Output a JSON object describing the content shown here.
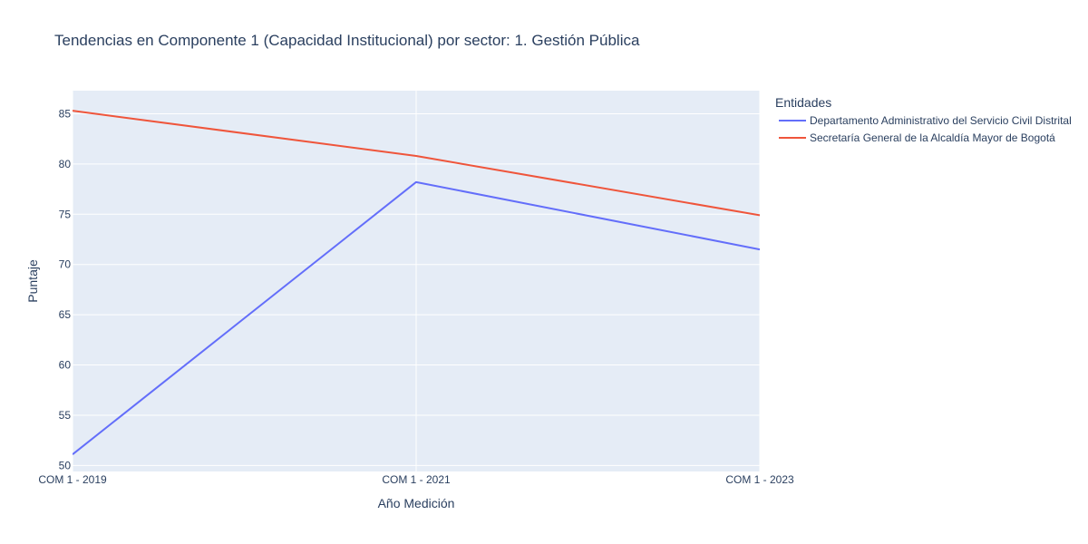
{
  "chart_data": {
    "type": "line",
    "title": "Tendencias en Componente 1 (Capacidad Institucional) por sector: 1. Gestión Pública",
    "xlabel": "Año Medición",
    "ylabel": "Puntaje",
    "categories": [
      "COM 1 - 2019",
      "COM 1 - 2021",
      "COM 1 - 2023"
    ],
    "yticks": [
      50,
      55,
      60,
      65,
      70,
      75,
      80,
      85
    ],
    "ylim": [
      49.4,
      87.3
    ],
    "grid": true,
    "legend": {
      "title": "Entidades",
      "placement": "right"
    },
    "series": [
      {
        "name": "Departamento Administrativo del Servicio Civil Distrital",
        "values": [
          51.1,
          78.2,
          71.5
        ],
        "color": "#636efa"
      },
      {
        "name": "Secretaría General de la Alcaldía Mayor de Bogotá",
        "values": [
          85.3,
          80.8,
          74.9
        ],
        "color": "#ef553b"
      }
    ],
    "plot_background": "#e5ecf6",
    "grid_color": "#ffffff"
  }
}
